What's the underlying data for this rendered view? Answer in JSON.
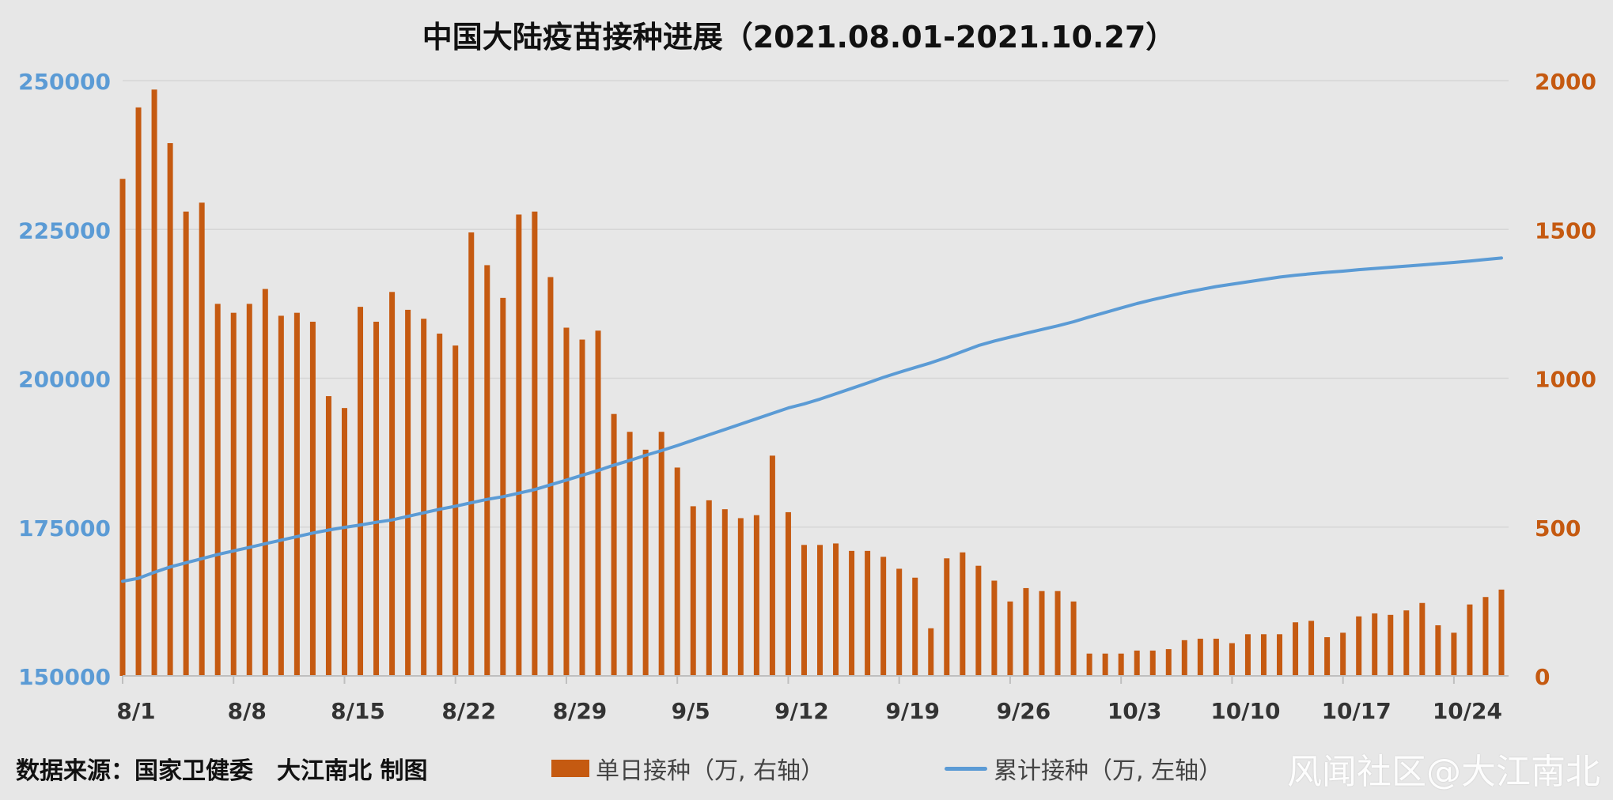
{
  "colors": {
    "bar": "#c55a11",
    "line": "#5b9bd5",
    "left_axis": "#5b9bd5",
    "right_axis": "#c55a11",
    "grid": "#d6d6d6",
    "background": "#e7e7e7"
  },
  "footer": {
    "source": "数据来源：国家卫健委　大江南北 制图",
    "watermark": "风闻社区@大江南北"
  },
  "chart_data": {
    "type": "bar",
    "title": "中国大陆疫苗接种进展（2021.08.01-2021.10.27）",
    "start_date": "2021-08-01",
    "end_date": "2021-10-27",
    "x_tick_labels": [
      "8/1",
      "8/8",
      "8/15",
      "8/22",
      "8/29",
      "9/5",
      "9/12",
      "9/19",
      "9/26",
      "10/3",
      "10/10",
      "10/17",
      "10/24"
    ],
    "y_left": {
      "label": "",
      "min": 150000,
      "max": 250000,
      "ticks": [
        150000,
        175000,
        200000,
        225000,
        250000
      ]
    },
    "y_right": {
      "label": "",
      "min": 0,
      "max": 2000,
      "ticks": [
        0,
        500,
        1000,
        1500,
        2000
      ]
    },
    "grid": true,
    "legend_position": "bottom",
    "series": [
      {
        "name": "单日接种（万, 右轴）",
        "type": "bar",
        "axis": "right",
        "values": [
          1670,
          1910,
          1970,
          1790,
          1560,
          1590,
          1250,
          1220,
          1250,
          1300,
          1210,
          1220,
          1190,
          940,
          900,
          1240,
          1190,
          1290,
          1230,
          1200,
          1150,
          1110,
          1490,
          1380,
          1270,
          1550,
          1560,
          1340,
          1170,
          1130,
          1160,
          880,
          820,
          760,
          820,
          700,
          570,
          590,
          560,
          530,
          540,
          740,
          550,
          440,
          440,
          445,
          420,
          420,
          400,
          360,
          330,
          160,
          395,
          415,
          370,
          320,
          250,
          295,
          285,
          285,
          250,
          75,
          75,
          75,
          85,
          85,
          90,
          120,
          125,
          125,
          110,
          140,
          140,
          140,
          180,
          185,
          130,
          145,
          200,
          210,
          205,
          220,
          245,
          170,
          145,
          240,
          265,
          290
        ]
      },
      {
        "name": "累计接种（万, 左轴）",
        "type": "line",
        "axis": "left",
        "values": [
          165900,
          166400,
          167400,
          168300,
          169000,
          169700,
          170400,
          171000,
          171600,
          172200,
          172800,
          173400,
          174000,
          174500,
          174950,
          175350,
          175800,
          176200,
          176800,
          177400,
          178000,
          178500,
          179100,
          179650,
          180100,
          180700,
          181300,
          182100,
          182900,
          183700,
          184500,
          185400,
          186200,
          187050,
          187850,
          188700,
          189600,
          190500,
          191400,
          192300,
          193200,
          194100,
          195000,
          195700,
          196500,
          197400,
          198300,
          199200,
          200150,
          201000,
          201800,
          202600,
          203500,
          204500,
          205500,
          206250,
          206900,
          207550,
          208200,
          208800,
          209500,
          210300,
          211050,
          211800,
          212550,
          213200,
          213800,
          214400,
          214900,
          215400,
          215800,
          216200,
          216600,
          217000,
          217300,
          217550,
          217800,
          218000,
          218250,
          218450,
          218650,
          218850,
          219050,
          219250,
          219450,
          219700,
          219950,
          220200
        ]
      }
    ]
  }
}
